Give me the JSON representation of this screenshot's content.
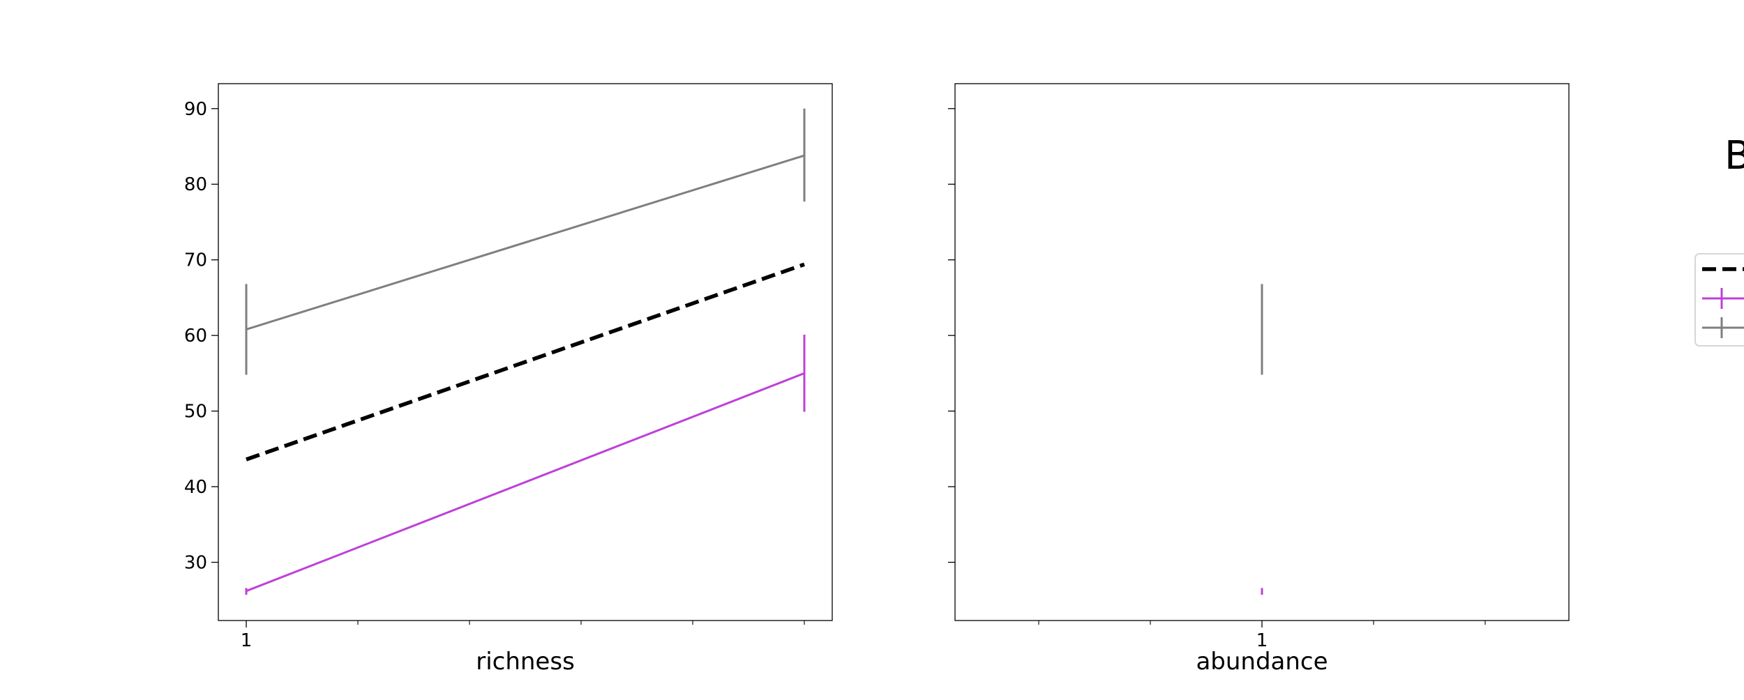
{
  "chart_data": [
    {
      "type": "line",
      "xlabel": "richness",
      "x_ticks": [
        "1"
      ],
      "y_ticks": [
        30,
        40,
        50,
        60,
        70,
        80,
        90
      ],
      "ylim": [
        22.3,
        93.3
      ],
      "series": [
        {
          "style": "dashed",
          "color": "#000000",
          "x": [
            1,
            6
          ],
          "y": [
            43.6,
            69.4
          ]
        },
        {
          "style": "solid",
          "color": "#bf40d8",
          "x": [
            1,
            6
          ],
          "y": [
            26.2,
            55.0
          ],
          "err_low": [
            25.7,
            49.9
          ],
          "err_high": [
            26.6,
            60.1
          ]
        },
        {
          "style": "solid",
          "color": "#7f7f7f",
          "x": [
            1,
            6
          ],
          "y": [
            60.8,
            83.8
          ],
          "err_low": [
            54.8,
            77.7
          ],
          "err_high": [
            66.8,
            90.0
          ]
        }
      ]
    },
    {
      "type": "line",
      "xlabel": "abundance",
      "x_ticks": [
        "1"
      ],
      "ylim": [
        22.3,
        93.3
      ],
      "series": [
        {
          "style": "solid",
          "color": "#bf40d8",
          "x": [
            1
          ],
          "y": [
            26.2
          ],
          "err_low": [
            25.7
          ],
          "err_high": [
            26.6
          ]
        },
        {
          "style": "solid",
          "color": "#7f7f7f",
          "x": [
            1
          ],
          "y": [
            60.8
          ],
          "err_low": [
            54.8
          ],
          "err_high": [
            66.8
          ]
        }
      ]
    }
  ],
  "legend": {
    "title_fragment": "B",
    "entries": [
      {
        "style": "dashed",
        "color": "#000000"
      },
      {
        "style": "solid-err",
        "color": "#bf40d8"
      },
      {
        "style": "solid-err",
        "color": "#7f7f7f"
      }
    ]
  }
}
